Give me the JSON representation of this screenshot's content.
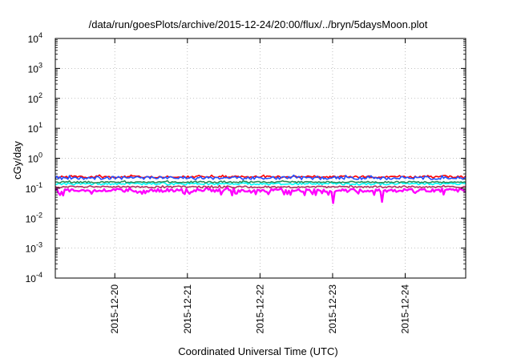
{
  "chart_data": {
    "type": "line",
    "title": "/data/run/goesPlots/archive/2015-12-24/20:00/flux/../bryn/5daysMoon.plot",
    "xlabel": "Coordinated Universal Time (UTC)",
    "ylabel": "cGy/day",
    "yscale": "log",
    "ylim": [
      0.0001,
      10000
    ],
    "xlim": [
      "2015-12-19 04:20",
      "2015-12-24 20:00"
    ],
    "x_ticks": [
      "2015-12-20",
      "2015-12-21",
      "2015-12-22",
      "2015-12-23",
      "2015-12-24"
    ],
    "y_ticks": [
      {
        "base": "10",
        "exp": "-4",
        "value": 0.0001
      },
      {
        "base": "10",
        "exp": "-3",
        "value": 0.001
      },
      {
        "base": "10",
        "exp": "-2",
        "value": 0.01
      },
      {
        "base": "10",
        "exp": "-1",
        "value": 0.1
      },
      {
        "base": "10",
        "exp": "0",
        "value": 1
      },
      {
        "base": "10",
        "exp": "1",
        "value": 10
      },
      {
        "base": "10",
        "exp": "2",
        "value": 100
      },
      {
        "base": "10",
        "exp": "3",
        "value": 1000
      },
      {
        "base": "10",
        "exp": "4",
        "value": 10000
      }
    ],
    "grid": true,
    "series": [
      {
        "color": "#ff00ff",
        "level": 0.085,
        "spread": 0.12
      },
      {
        "color": "#b03060",
        "level": 0.11,
        "spread": 0.07
      },
      {
        "color": "#00ffff",
        "level": 0.14,
        "spread": 0.08
      },
      {
        "color": "#2e8b57",
        "level": 0.16,
        "spread": 0.06
      },
      {
        "color": "#ff0000",
        "level": 0.24,
        "spread": 0.08
      },
      {
        "color": "#2050ff",
        "level": 0.22,
        "spread": 0.12
      }
    ],
    "dips": [
      {
        "x": "2015-12-23 00:10",
        "value": 0.032
      },
      {
        "x": "2015-12-23 16:10",
        "value": 0.035
      }
    ]
  }
}
